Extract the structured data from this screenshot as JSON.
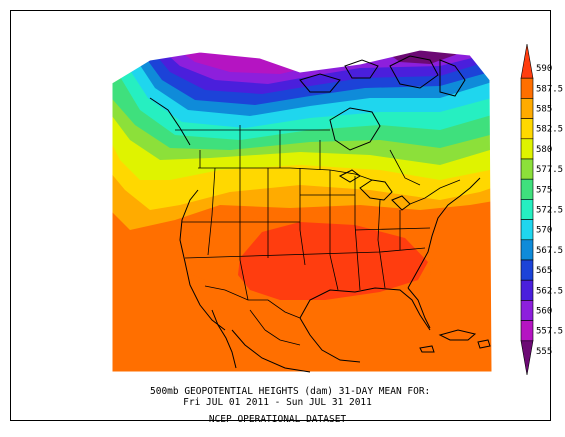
{
  "map": {
    "title_line1": "500mb GEOPOTENTIAL HEIGHTS (dam)   31-DAY MEAN FOR:",
    "title_line2": "Fri JUL 01 2011 - Sun JUL 31 2011",
    "dataset": "NCEP OPERATIONAL DATASET",
    "units": "dam",
    "region": "North America"
  },
  "colorbar": {
    "levels": [
      {
        "label": "590",
        "color": "#ff3d0f"
      },
      {
        "label": "587.5",
        "color": "#ff6f00"
      },
      {
        "label": "585",
        "color": "#ffab00"
      },
      {
        "label": "582.5",
        "color": "#ffd800"
      },
      {
        "label": "580",
        "color": "#dff300"
      },
      {
        "label": "577.5",
        "color": "#8ce03a"
      },
      {
        "label": "575",
        "color": "#3fe07d"
      },
      {
        "label": "572.5",
        "color": "#26efc1"
      },
      {
        "label": "570",
        "color": "#1fd6ee"
      },
      {
        "label": "567.5",
        "color": "#0f8bd9"
      },
      {
        "label": "565",
        "color": "#1c43d8"
      },
      {
        "label": "562.5",
        "color": "#4a1fdc"
      },
      {
        "label": "560",
        "color": "#8d1fdc"
      },
      {
        "label": "557.5",
        "color": "#b514c2"
      },
      {
        "label": "555",
        "color": "#6c0a74"
      }
    ]
  }
}
